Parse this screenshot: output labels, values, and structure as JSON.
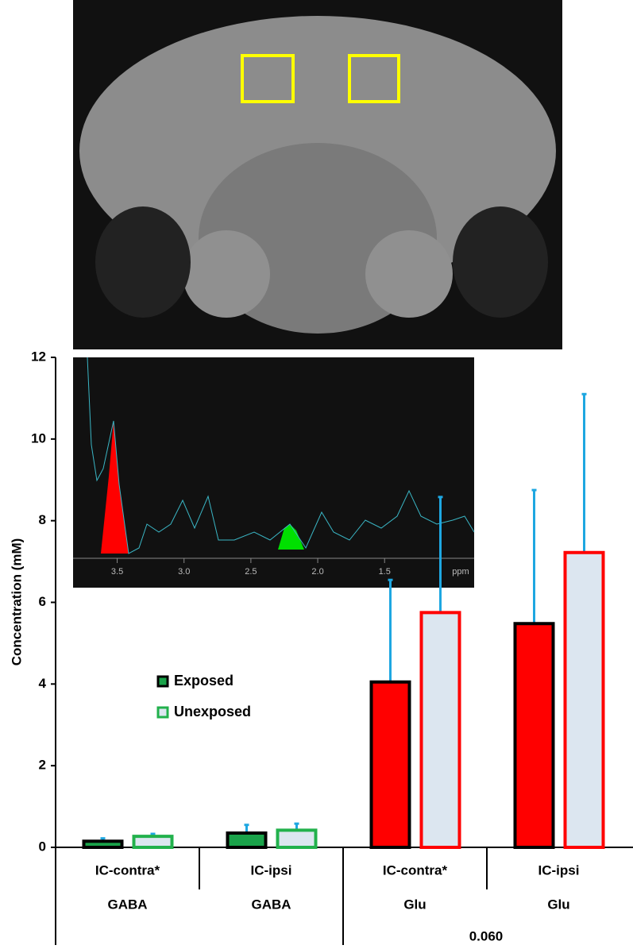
{
  "chart_data": {
    "type": "bar",
    "y_label": "Concentration (mM)",
    "categories": [
      "IC-contra*",
      "IC-ipsi",
      "IC-contra*",
      "IC-ipsi"
    ],
    "groups": [
      "GABA",
      "GABA",
      "Glu",
      "Glu"
    ],
    "series": [
      {
        "name": "Exposed",
        "color": "#1aa34a",
        "fill_colors": [
          "#1aa34a",
          "#1aa34a",
          "#ff0000",
          "#ff0000"
        ],
        "edge_colors": [
          "#000000",
          "#000000",
          "#000000",
          "#000000"
        ],
        "values": [
          0.15,
          0.35,
          4.05,
          5.48
        ],
        "errors": [
          0.07,
          0.2,
          2.5,
          3.27
        ]
      },
      {
        "name": "Unexposed",
        "color": "#dce6f0",
        "edge_color": "#22b14c",
        "fill_colors": [
          "#dce6f0",
          "#dce6f0",
          "#dce6f0",
          "#dce6f0"
        ],
        "edge_colors": [
          "#22b14c",
          "#22b14c",
          "#ff0000",
          "#ff0000"
        ],
        "values": [
          0.27,
          0.42,
          5.75,
          7.22
        ],
        "errors": [
          0.06,
          0.16,
          2.83,
          3.88
        ]
      }
    ],
    "error_color": "#1ea7e1",
    "ylim": [
      0,
      12
    ],
    "yticks": [
      0,
      2,
      4,
      6,
      8,
      10,
      12
    ],
    "annotation": "0.060",
    "inset": {
      "x_label": "ppm",
      "xlim": [
        3.83,
        0.83
      ],
      "xticks": [
        {
          "value": 3.5,
          "label": "3.5"
        },
        {
          "value": 3,
          "label": "3.0"
        },
        {
          "value": 2.5,
          "label": "2.5"
        },
        {
          "value": 2,
          "label": "2.0"
        },
        {
          "value": 1.5,
          "label": "1.5"
        }
      ]
    }
  }
}
